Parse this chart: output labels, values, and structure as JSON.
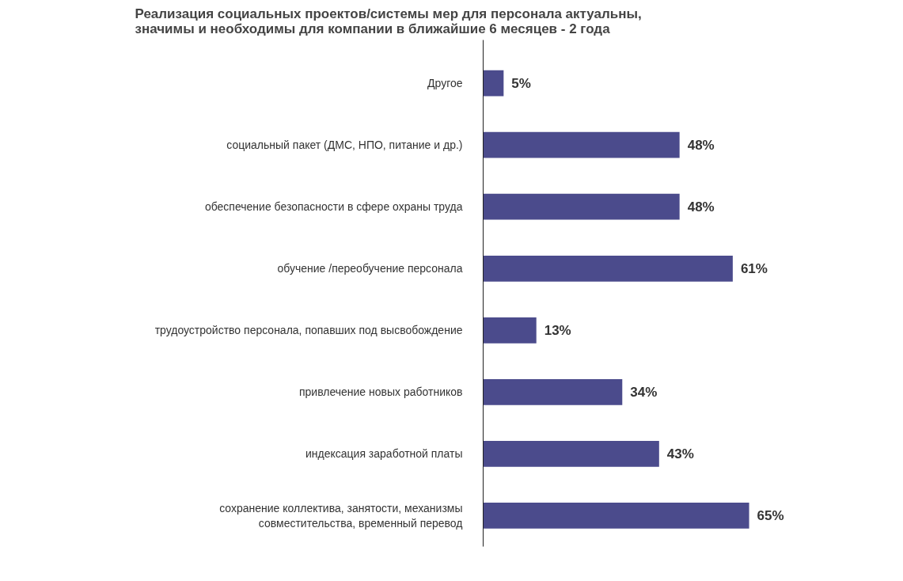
{
  "chart_data": {
    "type": "bar",
    "orientation": "horizontal",
    "title": "Реализация социальных проектов/системы мер для персонала актуальны,\nзначимы и необходимы для компании в ближайшие 6 месяцев - 2 года",
    "categories": [
      "Другое",
      "социальный пакет (ДМС, НПО, питание и др.)",
      "обеспечение безопасности в сфере охраны труда",
      "обучение /переобучение персонала",
      "трудоустройство персонала, попавших под высвобождение",
      "привлечение новых работников",
      "индексация заработной платы",
      "сохранение коллектива, занятости, механизмы\nсовместительства, временный перевод"
    ],
    "values": [
      5,
      48,
      48,
      61,
      13,
      34,
      43,
      65
    ],
    "value_labels": [
      "5%",
      "48%",
      "48%",
      "61%",
      "13%",
      "34%",
      "43%",
      "65%"
    ],
    "color": "#4b4b8c",
    "tick_labels": "y"
  }
}
